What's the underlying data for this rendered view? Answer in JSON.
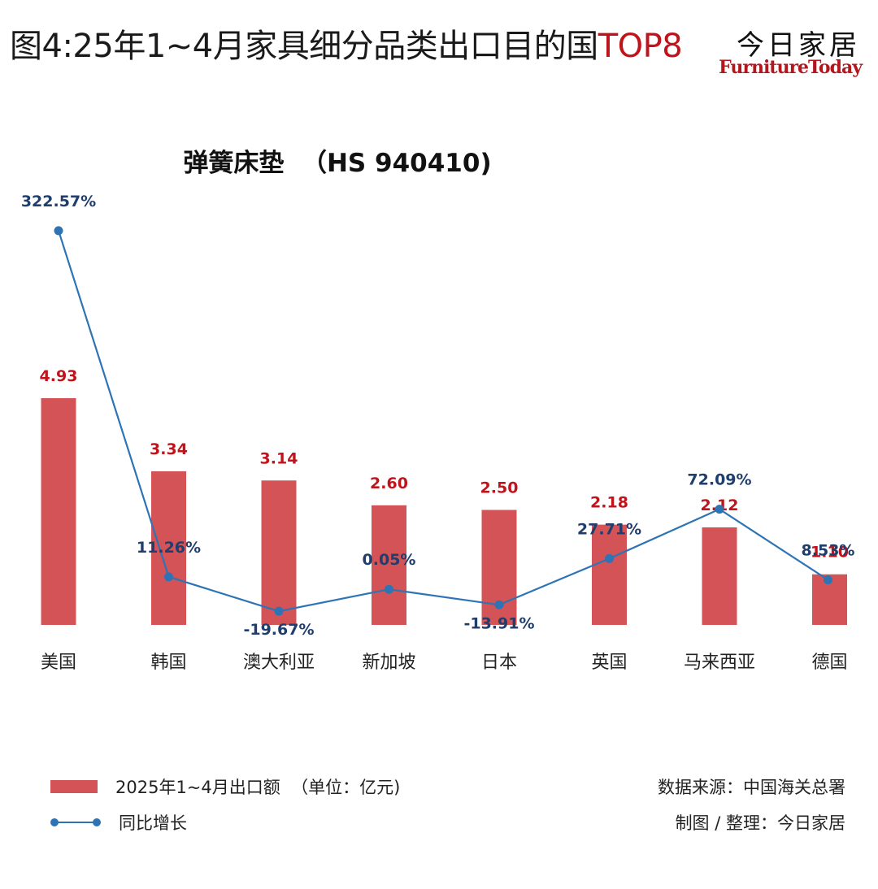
{
  "header": {
    "title_main": "图4:25年1~4月家具细分品类出口目的国",
    "title_accent": "TOP8",
    "brand_cn": "今日家居",
    "brand_en": "FurnitureToday"
  },
  "chart_data": {
    "type": "bar",
    "title": "弹簧床垫  （HS 940410)",
    "categories": [
      "美国",
      "韩国",
      "澳大利亚",
      "新加坡",
      "日本",
      "英国",
      "马来西亚",
      "德国"
    ],
    "series": [
      {
        "name": "2025年1~4月出口额  （单位：亿元)",
        "type": "bar",
        "values": [
          4.93,
          3.34,
          3.14,
          2.6,
          2.5,
          2.18,
          2.12,
          1.1
        ],
        "labels": [
          "4.93",
          "3.34",
          "3.14",
          "2.60",
          "2.50",
          "2.18",
          "2.12",
          "1.10"
        ]
      },
      {
        "name": "同比增长",
        "type": "line",
        "values": [
          322.57,
          11.26,
          -19.67,
          0.05,
          -13.91,
          27.71,
          72.09,
          8.53
        ],
        "labels": [
          "322.57%",
          "11.26%",
          "-19.67%",
          "0.05%",
          "-13.91%",
          "27.71%",
          "72.09%",
          "8.53%"
        ]
      }
    ],
    "colors": {
      "bar": "#d45356",
      "bar_label": "#c0141c",
      "line": "#2e74b5",
      "line_label": "#1f3e6e"
    },
    "legend": "bottom-left",
    "grid": false
  },
  "footer": {
    "source": "数据来源：中国海关总署",
    "credit": "制图 / 整理：今日家居"
  }
}
